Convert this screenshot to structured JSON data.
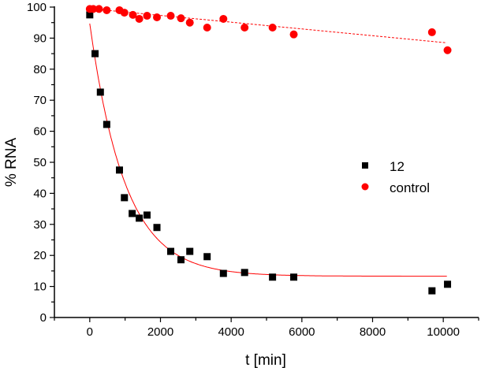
{
  "chart_data": {
    "type": "scatter",
    "title": "",
    "xlabel": "t [min]",
    "ylabel": "% RNA",
    "xlim": [
      -1000,
      11000
    ],
    "ylim": [
      0,
      100
    ],
    "xticks": [
      0,
      2000,
      4000,
      6000,
      8000,
      10000
    ],
    "yticks": [
      0,
      10,
      20,
      30,
      40,
      50,
      60,
      70,
      80,
      90,
      100
    ],
    "grid": false,
    "legend_position": "center-right",
    "series": [
      {
        "name": "12",
        "marker": "square",
        "color": "#000000",
        "x": [
          0,
          150,
          300,
          480,
          840,
          980,
          1200,
          1400,
          1620,
          1900,
          2290,
          2580,
          2830,
          3320,
          3780,
          4380,
          5170,
          5770,
          9680,
          10120
        ],
        "y": [
          97.5,
          85,
          72.6,
          62.2,
          47.5,
          38.6,
          33.5,
          32,
          33,
          29,
          21.3,
          18.6,
          21.3,
          19.6,
          14.2,
          14.5,
          13,
          13,
          8.6,
          10.7
        ],
        "fit": {
          "type": "exponential",
          "y0": 13.3,
          "A": 81.4,
          "tau": 1000,
          "x_range": [
            0,
            10100
          ],
          "color": "#ff0000",
          "style": "solid"
        }
      },
      {
        "name": "control",
        "marker": "circle",
        "color": "#ff0000",
        "x": [
          0,
          100,
          260,
          480,
          840,
          980,
          1220,
          1400,
          1620,
          1900,
          2290,
          2580,
          2830,
          3320,
          3780,
          4380,
          5170,
          5770,
          9680,
          10120
        ],
        "y": [
          99.4,
          99.4,
          99.4,
          99,
          99,
          98.2,
          97.5,
          96.2,
          97.2,
          96.7,
          97.2,
          96.4,
          95,
          93.4,
          96.2,
          93.4,
          93.4,
          91.2,
          91.9,
          86.1
        ],
        "fit": {
          "type": "linear",
          "intercept": 99.5,
          "slope": -0.00109,
          "x_range": [
            0,
            10100
          ],
          "color": "#ff0000",
          "style": "dashed"
        }
      }
    ]
  }
}
